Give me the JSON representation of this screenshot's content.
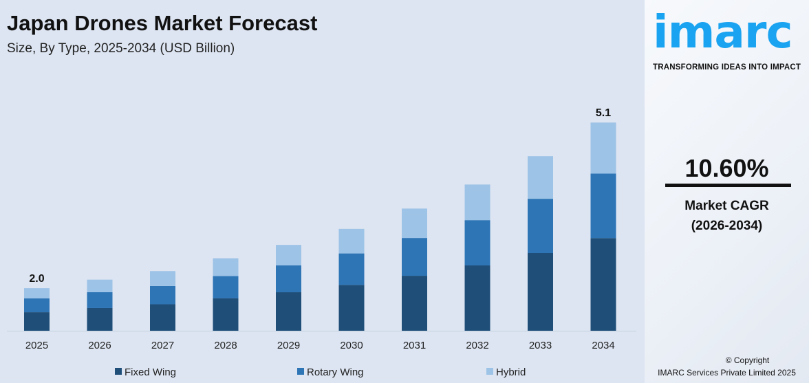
{
  "header": {
    "title": "Japan Drones Market Forecast",
    "subtitle": "Size, By Type, 2025-2034 (USD Billion)"
  },
  "brand": {
    "logo": "imarc",
    "tagline": "TRANSFORMING IDEAS INTO IMPACT"
  },
  "stats": {
    "cagr": "10.60%",
    "label1": "Market CAGR",
    "label2": "(2026-2034)"
  },
  "copyright": {
    "line1": "© Copyright",
    "line2": "IMARC Services Private Limited 2025"
  },
  "colors": {
    "fixed": "#1f4e79",
    "rotary": "#2e75b6",
    "hybrid": "#9dc3e6"
  },
  "chart_data": {
    "type": "bar",
    "stacked": true,
    "title": "Japan Drones Market Forecast",
    "subtitle": "Size, By Type, 2025-2034 (USD Billion)",
    "categories": [
      "2025",
      "2026",
      "2027",
      "2028",
      "2029",
      "2030",
      "2031",
      "2032",
      "2033",
      "2034"
    ],
    "series": [
      {
        "name": "Fixed Wing",
        "values": [
          0.87,
          0.96,
          1.03,
          1.15,
          1.26,
          1.4,
          1.57,
          1.76,
          1.99,
          2.27
        ]
      },
      {
        "name": "Rotary Wing",
        "values": [
          0.65,
          0.67,
          0.71,
          0.78,
          0.88,
          0.96,
          1.08,
          1.22,
          1.39,
          1.58
        ]
      },
      {
        "name": "Hybrid",
        "values": [
          0.48,
          0.53,
          0.58,
          0.63,
          0.67,
          0.75,
          0.84,
          0.96,
          1.09,
          1.25
        ]
      }
    ],
    "data_labels": {
      "2025": "2.0",
      "2034": "5.1"
    },
    "legend": "bottom",
    "grid": false
  }
}
